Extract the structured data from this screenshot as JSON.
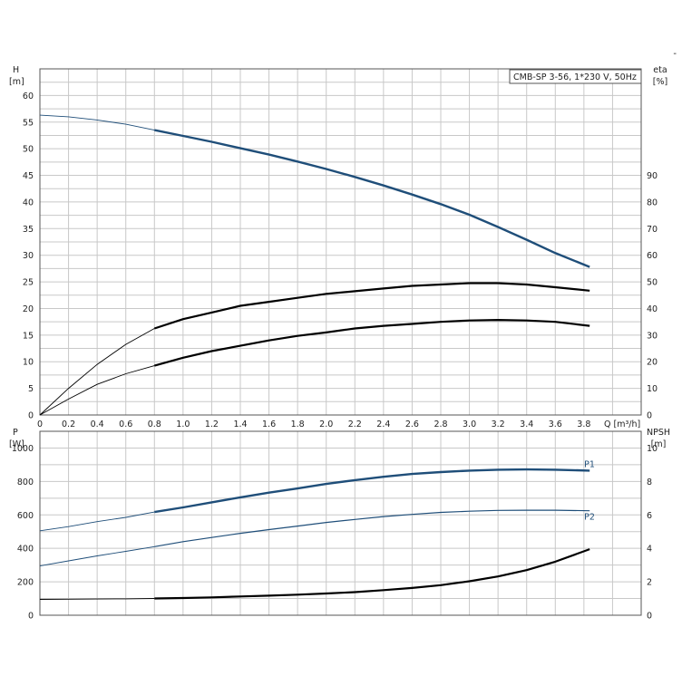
{
  "corner_mark": "-",
  "chart_data": [
    {
      "type": "line",
      "title": "CMB-SP 3-56, 1*230 V, 50Hz",
      "xlabel": "Q [m³/h]",
      "xlim": [
        0,
        4.2
      ],
      "x_ticks": [
        0,
        0.2,
        0.4,
        0.6,
        0.8,
        1.0,
        1.2,
        1.4,
        1.6,
        1.8,
        2.0,
        2.2,
        2.4,
        2.6,
        2.8,
        3.0,
        3.2,
        3.4,
        3.6,
        3.8
      ],
      "x_tick_labels": [
        "0",
        "0.2",
        "0.4",
        "0.6",
        "0.8",
        "1.0",
        "1.2",
        "1.4",
        "1.6",
        "1.8",
        "2.0",
        "2.2",
        "2.4",
        "2.6",
        "2.8",
        "3.0",
        "3.2",
        "3.4",
        "3.6",
        "3.8"
      ],
      "y_left": {
        "label_top": "H",
        "label_unit": "[m]",
        "lim": [
          0,
          65
        ],
        "ticks": [
          0,
          5,
          10,
          15,
          20,
          25,
          30,
          35,
          40,
          45,
          50,
          55,
          60
        ]
      },
      "y_right": {
        "label_top": "eta",
        "label_unit": "[%]",
        "lim": [
          0,
          130
        ],
        "ticks": [
          0,
          10,
          20,
          30,
          40,
          50,
          60,
          70,
          80,
          90
        ]
      },
      "grid": true,
      "series": [
        {
          "color": "#1f4e79",
          "axis": "left",
          "x": [
            0,
            0.2,
            0.4,
            0.6,
            0.8,
            1.0,
            1.2,
            1.4,
            1.6,
            1.8,
            2.0,
            2.2,
            2.4,
            2.6,
            2.8,
            3.0,
            3.2,
            3.4,
            3.6,
            3.84
          ],
          "y": [
            56.3,
            56.0,
            55.4,
            54.6,
            53.5,
            52.4,
            51.3,
            50.1,
            48.9,
            47.6,
            46.2,
            44.7,
            43.1,
            41.4,
            39.6,
            37.6,
            35.3,
            32.9,
            30.4,
            27.8
          ]
        },
        {
          "color": "#000000",
          "axis": "right",
          "x": [
            0,
            0.2,
            0.4,
            0.6,
            0.8,
            1.0,
            1.2,
            1.4,
            1.6,
            1.8,
            2.0,
            2.2,
            2.4,
            2.6,
            2.8,
            3.0,
            3.2,
            3.4,
            3.6,
            3.84
          ],
          "y": [
            0,
            10,
            19,
            26.5,
            32.5,
            36,
            38.5,
            41,
            42.5,
            44,
            45.5,
            46.5,
            47.5,
            48.5,
            49,
            49.5,
            49.5,
            49,
            48,
            46.7
          ]
        },
        {
          "color": "#000000",
          "axis": "right",
          "x": [
            0,
            0.2,
            0.4,
            0.6,
            0.8,
            1.0,
            1.2,
            1.4,
            1.6,
            1.8,
            2.0,
            2.2,
            2.4,
            2.6,
            2.8,
            3.0,
            3.2,
            3.4,
            3.6,
            3.84
          ],
          "y": [
            0,
            6,
            11.5,
            15.5,
            18.5,
            21.5,
            24,
            26,
            28,
            29.7,
            31,
            32.5,
            33.5,
            34.2,
            35,
            35.5,
            35.7,
            35.5,
            35,
            33.5
          ]
        }
      ]
    },
    {
      "type": "line",
      "xlim": [
        0,
        4.2
      ],
      "y_left": {
        "label_top": "P",
        "label_unit": "[W]",
        "lim": [
          0,
          1100
        ],
        "ticks": [
          0,
          200,
          400,
          600,
          800,
          1000
        ]
      },
      "y_right": {
        "label_top": "NPSH",
        "label_unit": "[m]",
        "lim": [
          0,
          11
        ],
        "ticks": [
          0,
          2,
          4,
          6,
          8,
          10
        ]
      },
      "grid": true,
      "series": [
        {
          "name": "P1",
          "color": "#1f4e79",
          "axis": "left",
          "x": [
            0,
            0.2,
            0.4,
            0.6,
            0.8,
            1.0,
            1.2,
            1.4,
            1.6,
            1.8,
            2.0,
            2.2,
            2.4,
            2.6,
            2.8,
            3.0,
            3.2,
            3.4,
            3.6,
            3.84
          ],
          "y": [
            505,
            530,
            560,
            585,
            617,
            645,
            675,
            705,
            733,
            758,
            785,
            808,
            828,
            845,
            856,
            865,
            870,
            872,
            870,
            865
          ]
        },
        {
          "name": "P2",
          "color": "#1f4e79",
          "axis": "left",
          "x": [
            0,
            0.2,
            0.4,
            0.6,
            0.8,
            1.0,
            1.2,
            1.4,
            1.6,
            1.8,
            2.0,
            2.2,
            2.4,
            2.6,
            2.8,
            3.0,
            3.2,
            3.4,
            3.6,
            3.84
          ],
          "y": [
            295,
            325,
            355,
            382,
            410,
            440,
            465,
            490,
            512,
            533,
            555,
            573,
            590,
            603,
            615,
            622,
            627,
            628,
            628,
            625
          ]
        },
        {
          "color": "#000000",
          "axis": "right",
          "x": [
            0,
            0.2,
            0.4,
            0.6,
            0.8,
            1.0,
            1.2,
            1.4,
            1.6,
            1.8,
            2.0,
            2.2,
            2.4,
            2.6,
            2.8,
            3.0,
            3.2,
            3.4,
            3.6,
            3.84
          ],
          "y": [
            0.95,
            0.96,
            0.97,
            0.98,
            1.0,
            1.03,
            1.07,
            1.12,
            1.17,
            1.23,
            1.3,
            1.38,
            1.5,
            1.63,
            1.8,
            2.03,
            2.32,
            2.7,
            3.2,
            3.95
          ]
        }
      ]
    }
  ]
}
